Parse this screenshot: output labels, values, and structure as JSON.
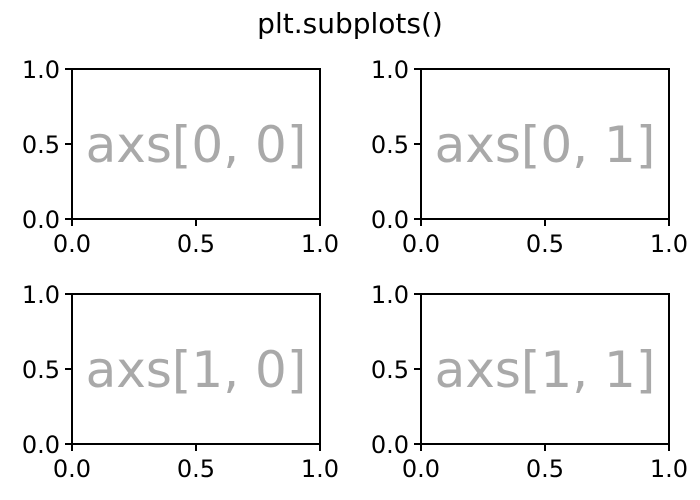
{
  "figure": {
    "suptitle": "plt.subplots()"
  },
  "chart_data": [
    {
      "type": "scatter",
      "axes_label": "axs[0, 0]",
      "label_color": "#a9a9a9",
      "xlim": [
        0.0,
        1.0
      ],
      "ylim": [
        0.0,
        1.0
      ],
      "xticks": [
        0.0,
        0.5,
        1.0
      ],
      "yticks": [
        0.0,
        0.5,
        1.0
      ],
      "xtick_labels": [
        "0.0",
        "0.5",
        "1.0"
      ],
      "ytick_labels": [
        "0.0",
        "0.5",
        "1.0"
      ],
      "grid": false,
      "series": []
    },
    {
      "type": "scatter",
      "axes_label": "axs[0, 1]",
      "label_color": "#a9a9a9",
      "xlim": [
        0.0,
        1.0
      ],
      "ylim": [
        0.0,
        1.0
      ],
      "xticks": [
        0.0,
        0.5,
        1.0
      ],
      "yticks": [
        0.0,
        0.5,
        1.0
      ],
      "xtick_labels": [
        "0.0",
        "0.5",
        "1.0"
      ],
      "ytick_labels": [
        "0.0",
        "0.5",
        "1.0"
      ],
      "grid": false,
      "series": []
    },
    {
      "type": "scatter",
      "axes_label": "axs[1, 0]",
      "label_color": "#a9a9a9",
      "xlim": [
        0.0,
        1.0
      ],
      "ylim": [
        0.0,
        1.0
      ],
      "xticks": [
        0.0,
        0.5,
        1.0
      ],
      "yticks": [
        0.0,
        0.5,
        1.0
      ],
      "xtick_labels": [
        "0.0",
        "0.5",
        "1.0"
      ],
      "ytick_labels": [
        "0.0",
        "0.5",
        "1.0"
      ],
      "grid": false,
      "series": []
    },
    {
      "type": "scatter",
      "axes_label": "axs[1, 1]",
      "label_color": "#a9a9a9",
      "xlim": [
        0.0,
        1.0
      ],
      "ylim": [
        0.0,
        1.0
      ],
      "xticks": [
        0.0,
        0.5,
        1.0
      ],
      "yticks": [
        0.0,
        0.5,
        1.0
      ],
      "xtick_labels": [
        "0.0",
        "0.5",
        "1.0"
      ],
      "ytick_labels": [
        "0.0",
        "0.5",
        "1.0"
      ],
      "grid": false,
      "series": []
    }
  ]
}
